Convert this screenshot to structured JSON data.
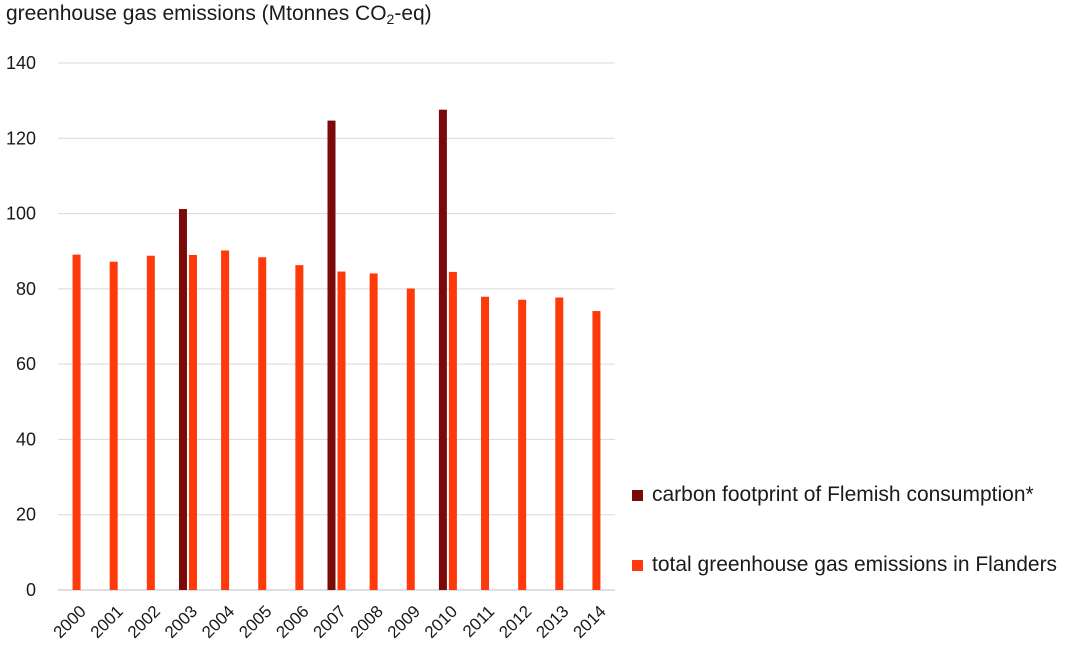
{
  "title": {
    "prefix": "greenhouse gas emissions (Mtonnes CO",
    "subscript": "2",
    "suffix": "-eq)"
  },
  "chart_data": {
    "type": "bar",
    "title": "greenhouse gas emissions (Mtonnes CO2-eq)",
    "categories": [
      "2000",
      "2001",
      "2002",
      "2003",
      "2004",
      "2005",
      "2006",
      "2007",
      "2008",
      "2009",
      "2010",
      "2011",
      "2012",
      "2013",
      "2014"
    ],
    "series": [
      {
        "name": "carbon footprint of Flemish consumption*",
        "color": "#7a0a0a",
        "values": [
          null,
          null,
          null,
          101.2,
          null,
          null,
          null,
          124.7,
          null,
          null,
          127.6,
          null,
          null,
          null,
          null
        ]
      },
      {
        "name": "total greenhouse gas emissions in Flanders",
        "color": "#ff3a0a",
        "values": [
          89.1,
          87.2,
          88.8,
          89.0,
          90.2,
          88.4,
          86.3,
          84.6,
          84.1,
          80.1,
          84.5,
          77.9,
          77.1,
          77.7,
          74.1
        ]
      }
    ],
    "ylim": [
      0,
      140
    ],
    "yticks": [
      "0",
      "20",
      "40",
      "60",
      "80",
      "100",
      "120",
      "140"
    ],
    "grid": true,
    "legend_position": "right"
  }
}
